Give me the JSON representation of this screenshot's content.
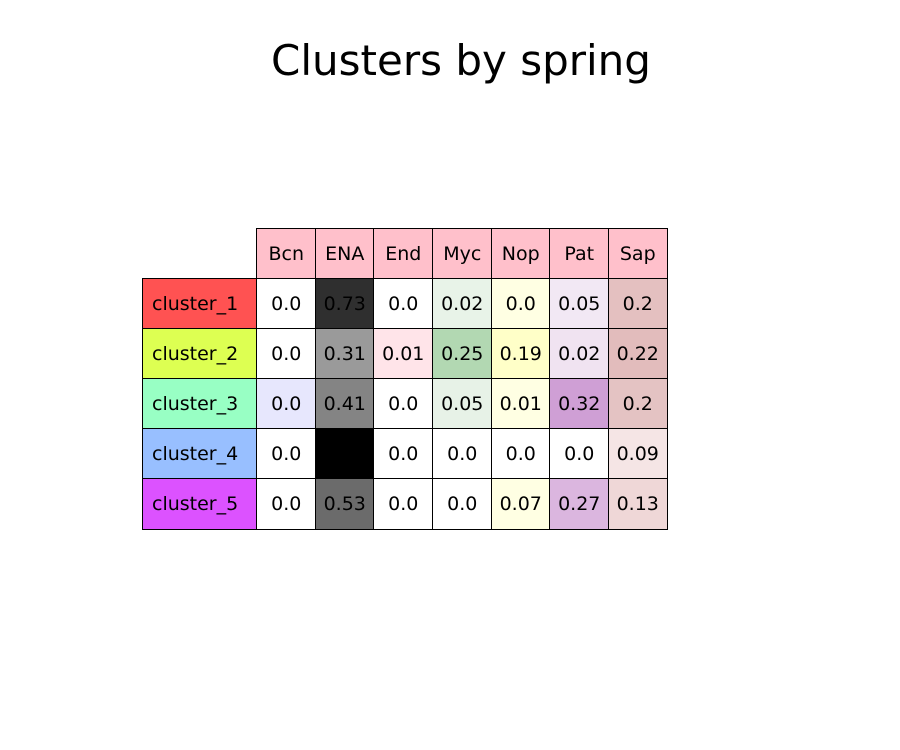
{
  "title": "Clusters by spring",
  "chart_data": {
    "type": "table",
    "title": "Clusters by spring",
    "columns": [
      "Bcn",
      "ENA",
      "End",
      "Myc",
      "Nop",
      "Pat",
      "Sap"
    ],
    "header_color": "#ffc0cb",
    "rows": [
      {
        "label": "cluster_1",
        "color": "#ff5252",
        "values": [
          "0.0",
          "0.73",
          "0.0",
          "0.02",
          "0.0",
          "0.05",
          "0.2"
        ]
      },
      {
        "label": "cluster_2",
        "color": "#ddff52",
        "values": [
          "0.0",
          "0.31",
          "0.01",
          "0.25",
          "0.19",
          "0.02",
          "0.22"
        ]
      },
      {
        "label": "cluster_3",
        "color": "#98ffc4",
        "values": [
          "0.0",
          "0.41",
          "0.0",
          "0.05",
          "0.01",
          "0.32",
          "0.2"
        ]
      },
      {
        "label": "cluster_4",
        "color": "#98bfff",
        "values": [
          "0.0",
          "",
          "0.0",
          "0.0",
          "0.0",
          "0.0",
          "0.09"
        ]
      },
      {
        "label": "cluster_5",
        "color": "#dc52ff",
        "values": [
          "0.0",
          "0.53",
          "0.0",
          "0.0",
          "0.07",
          "0.27",
          "0.13"
        ]
      }
    ],
    "cell_colors": [
      [
        "#ffffff",
        "#2f2f2f",
        "#ffffff",
        "#e8f3e8",
        "#ffffe3",
        "#f2e8f4",
        "#e4c0c0"
      ],
      [
        "#ffffff",
        "#9a9a9a",
        "#ffe4e9",
        "#b2d8b2",
        "#ffffc8",
        "#f0e3f1",
        "#e2bcbc"
      ],
      [
        "#e7e7fd",
        "#848484",
        "#ffffff",
        "#e7f2e7",
        "#ffffe3",
        "#cf9fd5",
        "#e4c3c3"
      ],
      [
        "#ffffff",
        "#000000",
        "#ffffff",
        "#ffffff",
        "#ffffff",
        "#ffffff",
        "#f5e5e5"
      ],
      [
        "#ffffff",
        "#6b6b6b",
        "#ffffff",
        "#ffffff",
        "#ffffe3",
        "#dbb6df",
        "#efd7d7"
      ]
    ]
  }
}
